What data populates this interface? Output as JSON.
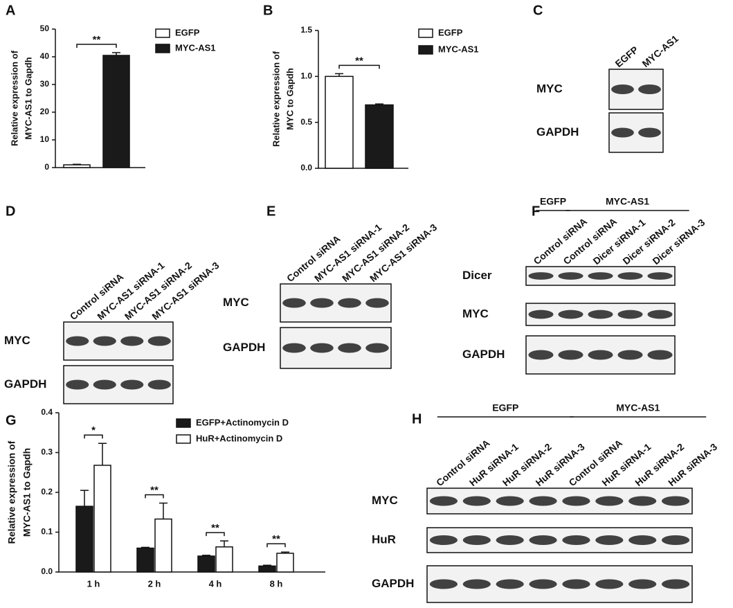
{
  "chart_data": [
    {
      "type": "bar",
      "panel": "A",
      "ylabel": [
        "Relative expression of",
        "MYC-AS1 to Gapdh"
      ],
      "series": [
        {
          "name": "EGFP",
          "color": "#ffffff",
          "values": [
            1
          ],
          "errors": [
            0.2
          ]
        },
        {
          "name": "MYC-AS1",
          "color": "#1a1a1a",
          "values": [
            40.5
          ],
          "errors": [
            1
          ]
        }
      ],
      "annotations": [
        "**"
      ],
      "ylim": [
        0,
        50
      ],
      "yticks": [
        0,
        10,
        20,
        30,
        40,
        50
      ]
    },
    {
      "type": "bar",
      "panel": "B",
      "ylabel": [
        "Relative expression of",
        "MYC to Gapdh"
      ],
      "series": [
        {
          "name": "EGFP",
          "color": "#ffffff",
          "values": [
            1.0
          ],
          "errors": [
            0.03
          ]
        },
        {
          "name": "MYC-AS1",
          "color": "#1a1a1a",
          "values": [
            0.69
          ],
          "errors": [
            0.01
          ]
        }
      ],
      "annotations": [
        "**"
      ],
      "ylim": [
        0,
        1.5
      ],
      "yticks": [
        {
          "value": 0,
          "label": "0.0"
        },
        0.5,
        {
          "value": 1,
          "label": "1.0"
        },
        1.5
      ]
    },
    {
      "type": "bar",
      "panel": "G",
      "ylabel": [
        "Relative expression of",
        "MYC-AS1 to Gapdh"
      ],
      "categories": [
        "1 h",
        "2 h",
        "4 h",
        "8 h"
      ],
      "series": [
        {
          "name": "EGFP+Actinomycin D",
          "color": "#1a1a1a",
          "values": [
            0.165,
            0.06,
            0.04,
            0.015
          ],
          "errors": [
            0.04,
            0.002,
            0.002,
            0.002
          ]
        },
        {
          "name": "HuR+Actinomycin D",
          "color": "#ffffff",
          "values": [
            0.268,
            0.133,
            0.063,
            0.047
          ],
          "errors": [
            0.055,
            0.04,
            0.015,
            0.003
          ]
        }
      ],
      "annotations": [
        "*",
        "**",
        "**",
        "**"
      ],
      "ylim": [
        0,
        0.4
      ],
      "yticks": [
        {
          "value": 0,
          "label": "0.0"
        },
        0.1,
        0.2,
        0.3,
        0.4
      ]
    }
  ],
  "blots": [
    {
      "panel": "C",
      "lanes": [
        "EGFP",
        "MYC-AS1"
      ],
      "rows": [
        "MYC",
        "GAPDH"
      ]
    },
    {
      "panel": "D",
      "lanes": [
        "Control siRNA",
        "MYC-AS1  siRNA-1",
        "MYC-AS1  siRNA-2",
        "MYC-AS1  siRNA-3"
      ],
      "rows": [
        "MYC",
        "GAPDH"
      ]
    },
    {
      "panel": "E",
      "lanes": [
        "Control siRNA",
        "MYC-AS1  siRNA-1",
        "MYC-AS1  siRNA-2",
        "MYC-AS1  siRNA-3"
      ],
      "rows": [
        "MYC",
        "GAPDH"
      ]
    },
    {
      "panel": "F",
      "groups": [
        "EGFP",
        "MYC-AS1"
      ],
      "lanes": [
        "Control siRNA",
        "Control siRNA",
        "Dicer siRNA-1",
        "Dicer siRNA-2",
        "Dicer siRNA-3"
      ],
      "rows": [
        "Dicer",
        "MYC",
        "GAPDH"
      ]
    },
    {
      "panel": "H",
      "groups": [
        "EGFP",
        "MYC-AS1"
      ],
      "lanes": [
        "Control siRNA",
        "HuR siRNA-1",
        "HuR siRNA-2",
        "HuR siRNA-3",
        "Control siRNA",
        "HuR siRNA-1",
        "HuR siRNA-2",
        "HuR siRNA-3"
      ],
      "rows": [
        "MYC",
        "HuR",
        "GAPDH"
      ]
    }
  ]
}
